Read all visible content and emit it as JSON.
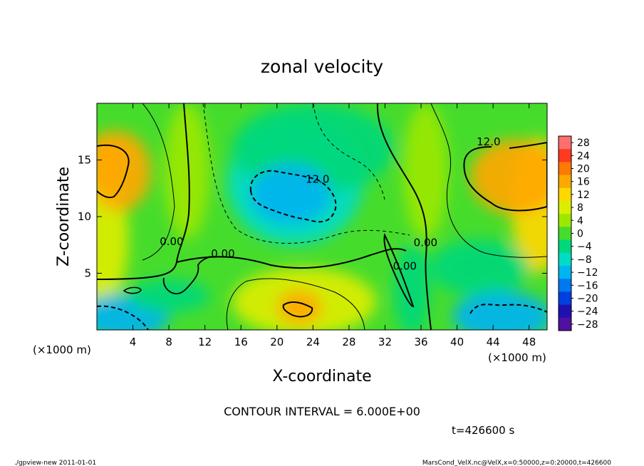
{
  "chart_data": {
    "type": "heatmap",
    "title": "zonal velocity",
    "xlabel": "X-coordinate",
    "ylabel": "Z-coordinate",
    "x_unit_left": "(×1000 m)",
    "x_unit_right": "(×1000 m)",
    "xlim": [
      0,
      50
    ],
    "ylim": [
      0,
      20
    ],
    "x_ticks": [
      4,
      8,
      12,
      16,
      20,
      24,
      28,
      32,
      36,
      40,
      44,
      48
    ],
    "y_ticks": [
      5,
      10,
      15
    ],
    "colorbar_labels": [
      "28",
      "24",
      "20",
      "16",
      "12",
      "8",
      "4",
      "0",
      "−4",
      "−8",
      "−12",
      "−16",
      "−20",
      "−24",
      "−28"
    ],
    "colorbar_levels": [
      28,
      24,
      20,
      16,
      12,
      8,
      4,
      0,
      -4,
      -8,
      -12,
      -16,
      -20,
      -24,
      -28
    ],
    "colorbar_colors": [
      "#ff6e6e",
      "#ff3a20",
      "#ff7a00",
      "#ffa800",
      "#ffd800",
      "#dcee00",
      "#9ce800",
      "#46dc2c",
      "#00d87a",
      "#00dcc8",
      "#00b4f0",
      "#0078f0",
      "#0040e0",
      "#2010b0",
      "#5010a0"
    ],
    "contour_interval": "CONTOUR INTERVAL = 6.000E+00",
    "contour_labels": [
      {
        "text": "12.0",
        "x": 43.5,
        "z": 16.3
      },
      {
        "text": "12.0",
        "x": 24.5,
        "z": 13.0
      },
      {
        "text": "0.00",
        "x": 8.3,
        "z": 7.5
      },
      {
        "text": "0.00",
        "x": 14.0,
        "z": 6.4
      },
      {
        "text": "0.00",
        "x": 36.5,
        "z": 7.4
      },
      {
        "text": "0.00",
        "x": 34.2,
        "z": 5.3
      }
    ],
    "blobs": [
      {
        "x": 2.5,
        "z": 14.0,
        "rx": 3.5,
        "rz": 3.5,
        "value": 14
      },
      {
        "x": 1.0,
        "z": 15.0,
        "rx": 2.0,
        "rz": 2.5,
        "value": 16
      },
      {
        "x": 0.5,
        "z": 8.0,
        "rx": 3.0,
        "rz": 6.0,
        "value": 8
      },
      {
        "x": 46.5,
        "z": 13.5,
        "rx": 5.0,
        "rz": 3.3,
        "value": 15
      },
      {
        "x": 49.0,
        "z": 11.0,
        "rx": 3.0,
        "rz": 6.0,
        "value": 10
      },
      {
        "x": 21.5,
        "z": 12.0,
        "rx": 4.5,
        "rz": 2.7,
        "value": -13
      },
      {
        "x": 22.0,
        "z": 13.0,
        "rx": 7.5,
        "rz": 5.5,
        "value": -7
      },
      {
        "x": 24.0,
        "z": 16.0,
        "rx": 9.0,
        "rz": 4.0,
        "value": -3
      },
      {
        "x": 22.5,
        "z": 2.0,
        "rx": 2.5,
        "rz": 1.5,
        "value": 15
      },
      {
        "x": 23.0,
        "z": 2.5,
        "rx": 8.0,
        "rz": 3.0,
        "value": 9
      },
      {
        "x": 3.0,
        "z": 1.2,
        "rx": 5.0,
        "rz": 2.0,
        "value": -12
      },
      {
        "x": 45.0,
        "z": 1.2,
        "rx": 5.5,
        "rz": 2.2,
        "value": -14
      },
      {
        "x": 42.5,
        "z": 5.5,
        "rx": 5.5,
        "rz": 2.5,
        "value": -5
      },
      {
        "x": 8.0,
        "z": 3.0,
        "rx": 4.5,
        "rz": 1.5,
        "value": -3
      },
      {
        "x": 35.0,
        "z": 3.5,
        "rx": 2.0,
        "rz": 4.0,
        "value": -4
      },
      {
        "x": 10.0,
        "z": 14.0,
        "rx": 2.5,
        "rz": 6.0,
        "value": 5
      },
      {
        "x": 36.5,
        "z": 14.0,
        "rx": 2.5,
        "rz": 6.0,
        "value": 3
      }
    ],
    "background_value": 1
  },
  "time_label": "t=426600 s",
  "footer": {
    "left": "./gpview-new  2011-01-01",
    "right": "MarsCond_VelX.nc@VelX,x=0:50000,z=0:20000,t=426600"
  }
}
